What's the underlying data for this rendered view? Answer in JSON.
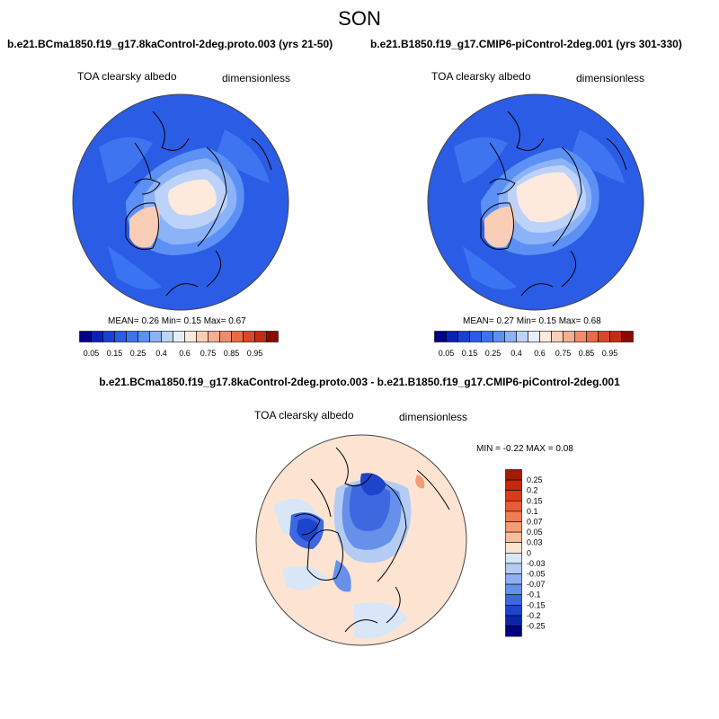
{
  "season": "SON",
  "panels": [
    {
      "title": "b.e21.BCma1850.f19_g17.8kaControl-2deg.proto.003 (yrs 21-50)",
      "field": "TOA clearsky albedo",
      "units": "dimensionless",
      "stats": "MEAN=   0.26   Min=   0.15   Max=   0.67"
    },
    {
      "title": "b.e21.B1850.f19_g17.CMIP6-piControl-2deg.001 (yrs 301-330)",
      "field": "TOA clearsky albedo",
      "units": "dimensionless",
      "stats": "MEAN=   0.27   Min=   0.15   Max=   0.68"
    }
  ],
  "colorbar": {
    "labels": [
      "0.05",
      "0.15",
      "0.25",
      "0.4",
      "0.6",
      "0.75",
      "0.85",
      "0.95"
    ],
    "colors": [
      "#00008c",
      "#0a1fb8",
      "#1a3fd6",
      "#2a5ae8",
      "#3a74f2",
      "#5c90f5",
      "#8cb2f7",
      "#bcd2f8",
      "#e6eef8",
      "#fdeadc",
      "#f9cdb6",
      "#f5ae92",
      "#f08c6c",
      "#ea6a48",
      "#de4528",
      "#c42a14",
      "#8c0a00"
    ]
  },
  "diff": {
    "title": "b.e21.BCma1850.f19_g17.8kaControl-2deg.proto.003 - b.e21.B1850.f19_g17.CMIP6-piControl-2deg.001",
    "field": "TOA clearsky albedo",
    "units": "dimensionless",
    "stats": "MIN =  -0.22 MAX =   0.08",
    "colorbar": {
      "labels": [
        "0.25",
        "0.2",
        "0.15",
        "0.1",
        "0.07",
        "0.05",
        "0.03",
        "0",
        "-0.03",
        "-0.05",
        "-0.07",
        "-0.1",
        "-0.15",
        "-0.2",
        "-0.25"
      ],
      "colors": [
        "#a51a05",
        "#c4280e",
        "#dc3a1a",
        "#ea5a34",
        "#f27c52",
        "#f69c74",
        "#f9bd9c",
        "#fde4d2",
        "#d8e6f7",
        "#b4ccf3",
        "#8eb0f0",
        "#6690ea",
        "#3d68e0",
        "#1c44cc",
        "#0a26a8",
        "#000080"
      ]
    }
  }
}
